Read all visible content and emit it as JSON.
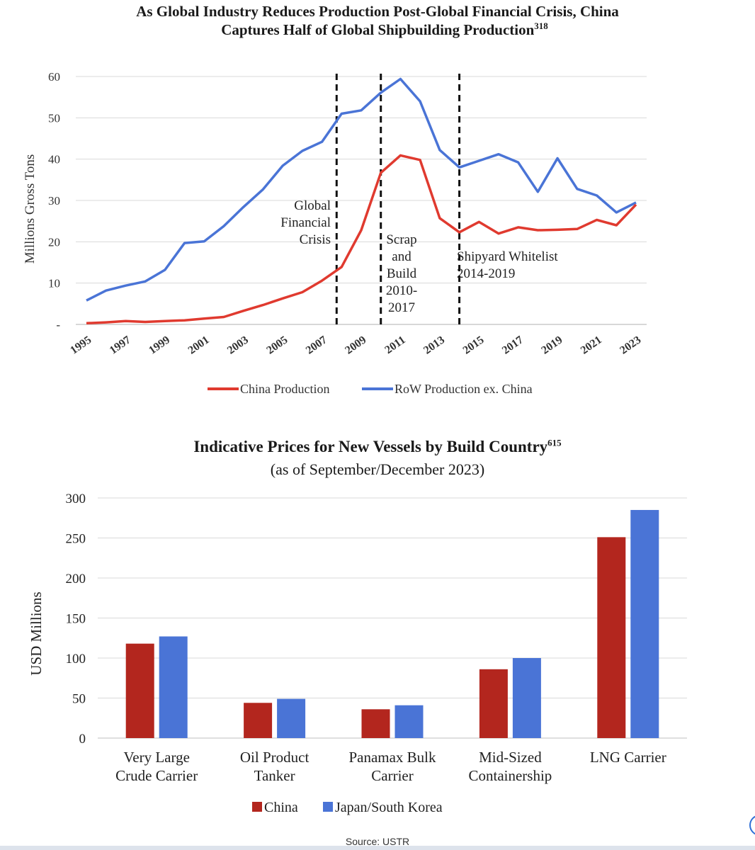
{
  "chart_data": [
    {
      "type": "line",
      "title": "As Global Industry Reduces Production Post-Global Financial Crisis, China",
      "title_line2": "Captures Half of Global Shipbuilding Production",
      "title_sup": "318",
      "ylabel": "Millions Gross Tons",
      "ylim": [
        0,
        60
      ],
      "yticks": [
        "-",
        "10",
        "20",
        "30",
        "40",
        "50",
        "60"
      ],
      "xticks": [
        "1995",
        "1997",
        "1999",
        "2001",
        "2003",
        "2005",
        "2007",
        "2009",
        "2011",
        "2013",
        "2015",
        "2017",
        "2019",
        "2021",
        "2023"
      ],
      "x": [
        1995,
        1996,
        1997,
        1998,
        1999,
        2000,
        2001,
        2002,
        2003,
        2004,
        2005,
        2006,
        2007,
        2008,
        2009,
        2010,
        2011,
        2012,
        2013,
        2014,
        2015,
        2016,
        2017,
        2018,
        2019,
        2020,
        2021,
        2022,
        2023
      ],
      "series": [
        {
          "name": "China Production",
          "color": "#e03a2f",
          "values": [
            0.3,
            0.5,
            0.8,
            0.6,
            0.8,
            1.0,
            1.4,
            1.8,
            3.3,
            4.7,
            6.3,
            7.8,
            10.6,
            13.9,
            22.8,
            36.7,
            40.9,
            39.8,
            25.7,
            22.3,
            24.8,
            22.0,
            23.5,
            22.8,
            22.9,
            23.1,
            25.3,
            24.0,
            29.0
          ]
        },
        {
          "name": "RoW Production ex. China",
          "color": "#4a74d6",
          "values": [
            5.8,
            8.2,
            9.4,
            10.4,
            13.2,
            19.7,
            20.1,
            23.8,
            28.4,
            32.7,
            38.4,
            42.0,
            44.2,
            51.0,
            51.8,
            56.1,
            59.4,
            54.0,
            42.2,
            38.0,
            39.6,
            41.2,
            39.2,
            32.1,
            40.2,
            32.8,
            31.2,
            27.1,
            29.5
          ]
        }
      ],
      "annotations": [
        {
          "x": 2008,
          "lines": [
            "Global",
            "Financial",
            "Crisis"
          ]
        },
        {
          "x": 2010,
          "lines": [
            "Scrap",
            "and",
            "Build",
            "2010-",
            "2017"
          ]
        },
        {
          "x": 2014,
          "lines": [
            "Shipyard Whitelist",
            "2014-2019"
          ]
        }
      ],
      "legend_position": "bottom"
    },
    {
      "type": "bar",
      "title": "Indicative Prices for New Vessels by Build Country",
      "title_sup": "615",
      "subtitle": "(as of September/December 2023)",
      "ylabel": "USD Millions",
      "ylim": [
        0,
        300
      ],
      "yticks": [
        "0",
        "50",
        "100",
        "150",
        "200",
        "250",
        "300"
      ],
      "categories": [
        [
          "Very Large",
          "Crude Carrier"
        ],
        [
          "Oil Product",
          "Tanker"
        ],
        [
          "Panamax Bulk",
          "Carrier"
        ],
        [
          "Mid-Sized",
          "Containership"
        ],
        [
          "LNG Carrier"
        ]
      ],
      "series": [
        {
          "name": "China",
          "color": "#b3261e",
          "values": [
            118,
            44,
            36,
            86,
            251
          ]
        },
        {
          "name": "Japan/South Korea",
          "color": "#4a74d6",
          "values": [
            127,
            49,
            41,
            100,
            285
          ]
        }
      ],
      "legend_position": "bottom"
    }
  ],
  "source": "Source: USTR"
}
